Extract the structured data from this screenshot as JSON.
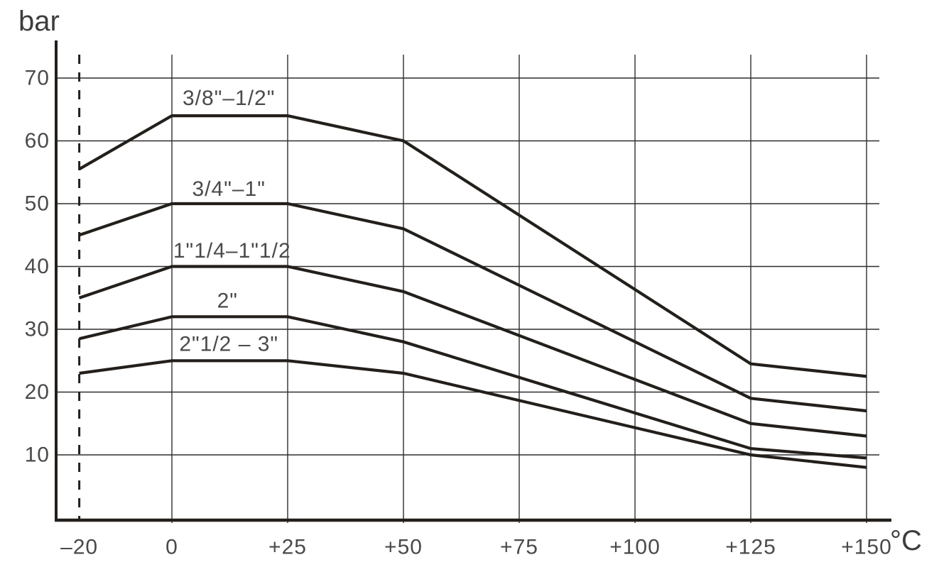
{
  "chart_data": {
    "type": "line",
    "title": "",
    "ylabel": "bar",
    "xlabel": "°C",
    "xlim": [
      -20,
      150
    ],
    "ylim": [
      0,
      73
    ],
    "grid": true,
    "legend_position": "inline-labels-above-curves",
    "dashed_guide_x": -20,
    "x_ticks": [
      {
        "value": -20,
        "label": "–20"
      },
      {
        "value": 0,
        "label": "0"
      },
      {
        "value": 25,
        "label": "+25"
      },
      {
        "value": 50,
        "label": "+50"
      },
      {
        "value": 75,
        "label": "+75"
      },
      {
        "value": 100,
        "label": "+100"
      },
      {
        "value": 125,
        "label": "+125"
      },
      {
        "value": 150,
        "label": "+150"
      }
    ],
    "y_ticks": [
      {
        "value": 10,
        "label": "10"
      },
      {
        "value": 20,
        "label": "20"
      },
      {
        "value": 30,
        "label": "30"
      },
      {
        "value": 40,
        "label": "40"
      },
      {
        "value": 50,
        "label": "50"
      },
      {
        "value": 60,
        "label": "60"
      },
      {
        "value": 70,
        "label": "70"
      }
    ],
    "series": [
      {
        "name": "3/8\"–1/2\"",
        "points": [
          [
            -20,
            55.5
          ],
          [
            0,
            64
          ],
          [
            25,
            64
          ],
          [
            50,
            60
          ],
          [
            125,
            24.5
          ],
          [
            150,
            22.5
          ]
        ],
        "label_at": [
          12.3,
          66.8
        ]
      },
      {
        "name": "3/4\"–1\"",
        "points": [
          [
            -20,
            45
          ],
          [
            0,
            50
          ],
          [
            25,
            50
          ],
          [
            50,
            46
          ],
          [
            125,
            19
          ],
          [
            150,
            17
          ]
        ],
        "label_at": [
          12.3,
          52.3
        ]
      },
      {
        "name": "1\"1/4–1\"1/2",
        "points": [
          [
            -20,
            35
          ],
          [
            0,
            40
          ],
          [
            25,
            40
          ],
          [
            50,
            36
          ],
          [
            125,
            15
          ],
          [
            150,
            13
          ]
        ],
        "label_at": [
          13.0,
          42.5
        ]
      },
      {
        "name": "2\"",
        "points": [
          [
            -20,
            28.5
          ],
          [
            0,
            32
          ],
          [
            25,
            32
          ],
          [
            50,
            28
          ],
          [
            125,
            11
          ],
          [
            150,
            9.5
          ]
        ],
        "label_at": [
          12.0,
          34.5
        ]
      },
      {
        "name": "2\"1/2 – 3\"",
        "points": [
          [
            -20,
            23
          ],
          [
            0,
            25
          ],
          [
            25,
            25
          ],
          [
            50,
            23
          ],
          [
            125,
            10
          ],
          [
            150,
            8
          ]
        ],
        "label_at": [
          12.3,
          27.6
        ]
      }
    ]
  },
  "colors": {
    "line": "#231f1b",
    "grid": "#2e2e2e",
    "text": "#4a4a4a",
    "background": "#ffffff"
  }
}
